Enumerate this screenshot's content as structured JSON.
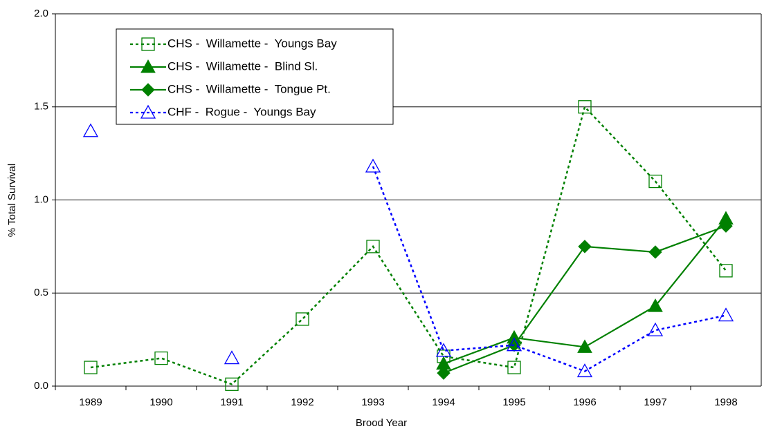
{
  "chart_data": {
    "type": "line",
    "x_label": "Brood Year",
    "y_label": "% Total Survival",
    "categories": [
      "1989",
      "1990",
      "1991",
      "1992",
      "1993",
      "1994",
      "1995",
      "1996",
      "1997",
      "1998"
    ],
    "ylim": [
      0,
      2
    ],
    "yticks": [
      {
        "value": 0,
        "label": "0.0"
      },
      0.5,
      {
        "value": 1,
        "label": "1.0"
      },
      1.5,
      {
        "value": 2,
        "label": "2.0"
      }
    ],
    "grid": true,
    "series": [
      {
        "name": "CHS -  Willamette -  Youngs Bay",
        "color": "#008000",
        "dash": true,
        "marker": "square-open",
        "values": [
          0.1,
          0.15,
          0.01,
          0.36,
          0.75,
          0.16,
          0.1,
          1.5,
          1.1,
          0.62
        ]
      },
      {
        "name": "CHS -  Willamette -  Blind Sl.",
        "color": "#008000",
        "dash": false,
        "marker": "triangle",
        "values": [
          null,
          null,
          null,
          null,
          null,
          0.12,
          0.26,
          0.21,
          0.43,
          0.9
        ]
      },
      {
        "name": "CHS -  Willamette -  Tongue Pt.",
        "color": "#008000",
        "dash": false,
        "marker": "diamond",
        "values": [
          null,
          null,
          null,
          null,
          null,
          0.07,
          0.22,
          0.75,
          0.72,
          0.86
        ]
      },
      {
        "name": "CHF -  Rogue -  Youngs Bay",
        "color": "#0000ff",
        "dash": true,
        "marker": "triangle-open",
        "values": [
          1.37,
          null,
          0.15,
          null,
          1.18,
          0.19,
          0.22,
          0.08,
          0.3,
          0.38
        ]
      }
    ]
  }
}
